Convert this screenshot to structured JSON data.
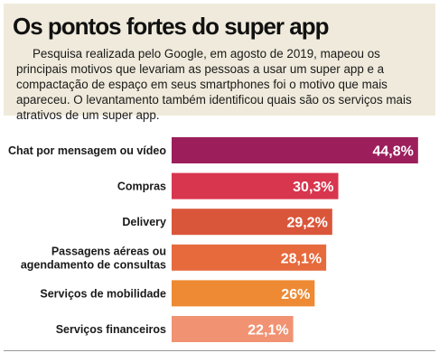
{
  "header": {
    "title": "Os pontos fortes do super app",
    "description": "Pesquisa realizada pelo Google, em agosto de 2019, mapeou os principais motivos que levariam as pessoas a usar um super app e a compactação de espaço em seus smartphones foi o motivo que mais apareceu. O levantamento também identificou quais são os serviços mais atrativos de um super app."
  },
  "chart_data": {
    "type": "bar",
    "orientation": "horizontal",
    "title": "",
    "xlabel": "",
    "ylabel": "",
    "grid": false,
    "categories": [
      [
        "Chat por mensagem ou vídeo"
      ],
      [
        "Compras"
      ],
      [
        "Delivery"
      ],
      [
        "Passagens aéreas ou",
        "agendamento de consultas"
      ],
      [
        "Serviços de mobilidade"
      ],
      [
        "Serviços financeiros"
      ]
    ],
    "values": [
      44.8,
      30.3,
      29.2,
      28.1,
      26,
      22.1
    ],
    "value_labels": [
      "44,8%",
      "30,3%",
      "29,2%",
      "28,1%",
      "26%",
      "22,1%"
    ],
    "colors": [
      "#9c1f5c",
      "#d8354e",
      "#d9563a",
      "#e66a3c",
      "#ee8a33",
      "#f19273"
    ],
    "value_label_color": "#ffffff"
  }
}
